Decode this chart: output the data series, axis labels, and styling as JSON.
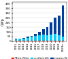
{
  "years": [
    "2011",
    "2012",
    "2013",
    "2014",
    "2015",
    "2016",
    "2017",
    "2018",
    "2019",
    "2020",
    "2021",
    "2022",
    "2023e"
  ],
  "thin_film": [
    3.5,
    3.0,
    3.5,
    4.0,
    4.5,
    5.0,
    5.0,
    5.5,
    5.0,
    5.0,
    6.0,
    7.0,
    8.0
  ],
  "multi": [
    20,
    22,
    28,
    34,
    42,
    52,
    62,
    68,
    60,
    65,
    70,
    55,
    45
  ],
  "mono": [
    4,
    5,
    7,
    9,
    12,
    18,
    33,
    55,
    85,
    130,
    175,
    210,
    330
  ],
  "thin_film_color": "#e8251a",
  "multi_color": "#00cfff",
  "mono_color": "#003f9e",
  "ylabel": "GWp",
  "background_color": "#ffffff",
  "ylim": [
    0,
    420
  ],
  "yticks": [
    0,
    50,
    100,
    150,
    200,
    250,
    300,
    350,
    400
  ],
  "legend_labels": [
    "Thin film",
    "c-si/multi",
    "mono-Si"
  ],
  "legend_fontsize": 3.5,
  "tick_fontsize": 3.0,
  "ylabel_fontsize": 3.5
}
